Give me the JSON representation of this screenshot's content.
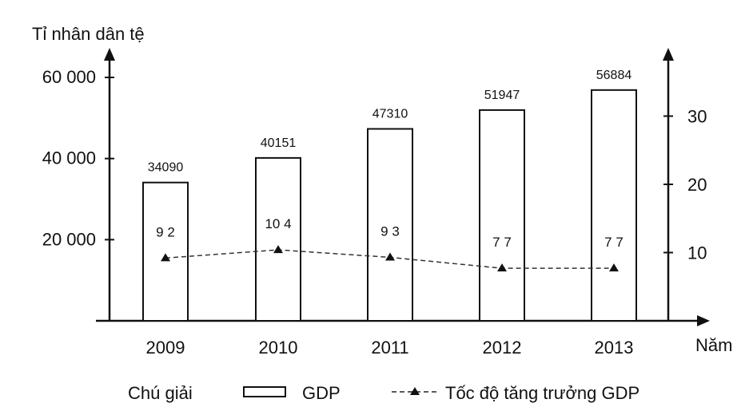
{
  "chart_data": {
    "type": "bar",
    "categories": [
      "2009",
      "2010",
      "2011",
      "2012",
      "2013"
    ],
    "series": [
      {
        "name": "GDP",
        "type": "bar",
        "axis": "left",
        "values": [
          34090,
          40151,
          47310,
          51947,
          56884
        ],
        "labels": [
          "34090",
          "40151",
          "47310",
          "51947",
          "56884"
        ]
      },
      {
        "name": "Tốc độ tăng trưởng GDP",
        "type": "line",
        "axis": "right",
        "values": [
          9.2,
          10.4,
          9.3,
          7.7,
          7.7
        ],
        "labels": [
          "9 2",
          "10 4",
          "9 3",
          "7 7",
          "7 7"
        ]
      }
    ],
    "ylabel": "Tỉ nhân dân tệ",
    "xlabel": "Năm",
    "ylim_left": [
      0,
      60000
    ],
    "yticks_left": [
      20000,
      40000,
      60000
    ],
    "yticks_left_labels": [
      "20 000",
      "40 000",
      "60 000"
    ],
    "ylim_right": [
      0,
      36
    ],
    "yticks_right": [
      10,
      20,
      30
    ],
    "yticks_right_labels": [
      "10",
      "20",
      "30"
    ],
    "legend": {
      "title": "Chú giải",
      "items": [
        "GDP",
        "Tốc độ tăng trưởng GDP"
      ],
      "placement": "bottom"
    },
    "grid": false
  }
}
